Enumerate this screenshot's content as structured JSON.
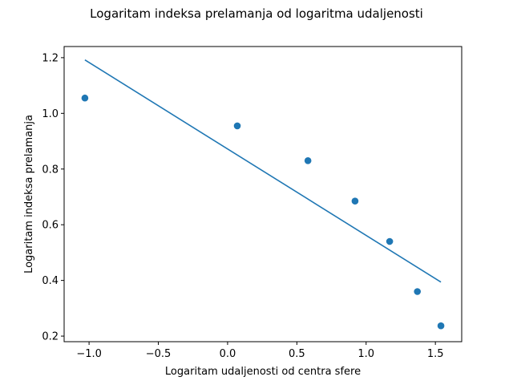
{
  "chart_data": {
    "type": "scatter",
    "title": "Logaritam indeksa prelamanja od logaritma udaljenosti",
    "xlabel": "Logaritam udaljenosti od centra sfere",
    "ylabel": "Logaritam indeksa prelamanja",
    "xlim": [
      -1.18,
      1.69
    ],
    "ylim": [
      0.18,
      1.24
    ],
    "xticks": [
      -1.0,
      -0.5,
      0.0,
      0.5,
      1.0,
      1.5
    ],
    "xtick_labels": [
      "−1.0",
      "−0.5",
      "0.0",
      "0.5",
      "1.0",
      "1.5"
    ],
    "yticks": [
      0.2,
      0.4,
      0.6,
      0.8,
      1.0,
      1.2
    ],
    "ytick_labels": [
      "0.2",
      "0.4",
      "0.6",
      "0.8",
      "1.0",
      "1.2"
    ],
    "grid": false,
    "series": [
      {
        "kind": "scatter",
        "color": "#1f77b4",
        "x": [
          -1.03,
          0.07,
          0.58,
          0.92,
          1.17,
          1.37,
          1.54
        ],
        "y": [
          1.055,
          0.955,
          0.83,
          0.685,
          0.54,
          0.36,
          0.237
        ]
      },
      {
        "kind": "line",
        "color": "#1f77b4",
        "x": [
          -1.03,
          1.54
        ],
        "y": [
          1.192,
          0.394
        ]
      }
    ]
  }
}
